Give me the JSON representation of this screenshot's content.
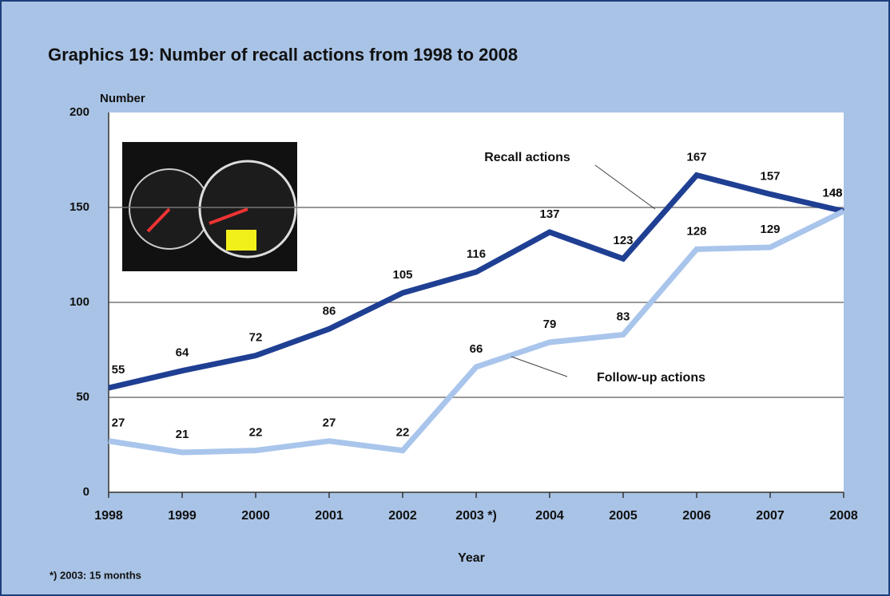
{
  "chart_data": {
    "type": "line",
    "title": "Graphics 19:  Number of recall actions from 1998 to 2008",
    "y_label": "Number",
    "x_label": "Year",
    "footnote": "*) 2003: 15 months",
    "categories": [
      "1998",
      "1999",
      "2000",
      "2001",
      "2002",
      "2003 *)",
      "2004",
      "2005",
      "2006",
      "2007",
      "2008"
    ],
    "series": [
      {
        "name": "Recall actions",
        "color": "#1f3f93",
        "values": [
          55,
          64,
          72,
          86,
          105,
          116,
          137,
          123,
          167,
          157,
          148
        ]
      },
      {
        "name": "Follow-up actions",
        "color": "#a9c5ec",
        "values": [
          27,
          21,
          22,
          27,
          22,
          66,
          79,
          83,
          128,
          129,
          148
        ]
      }
    ],
    "ylim": [
      0,
      200
    ],
    "yticks": [
      0,
      50,
      100,
      150,
      200
    ],
    "grid": true
  }
}
